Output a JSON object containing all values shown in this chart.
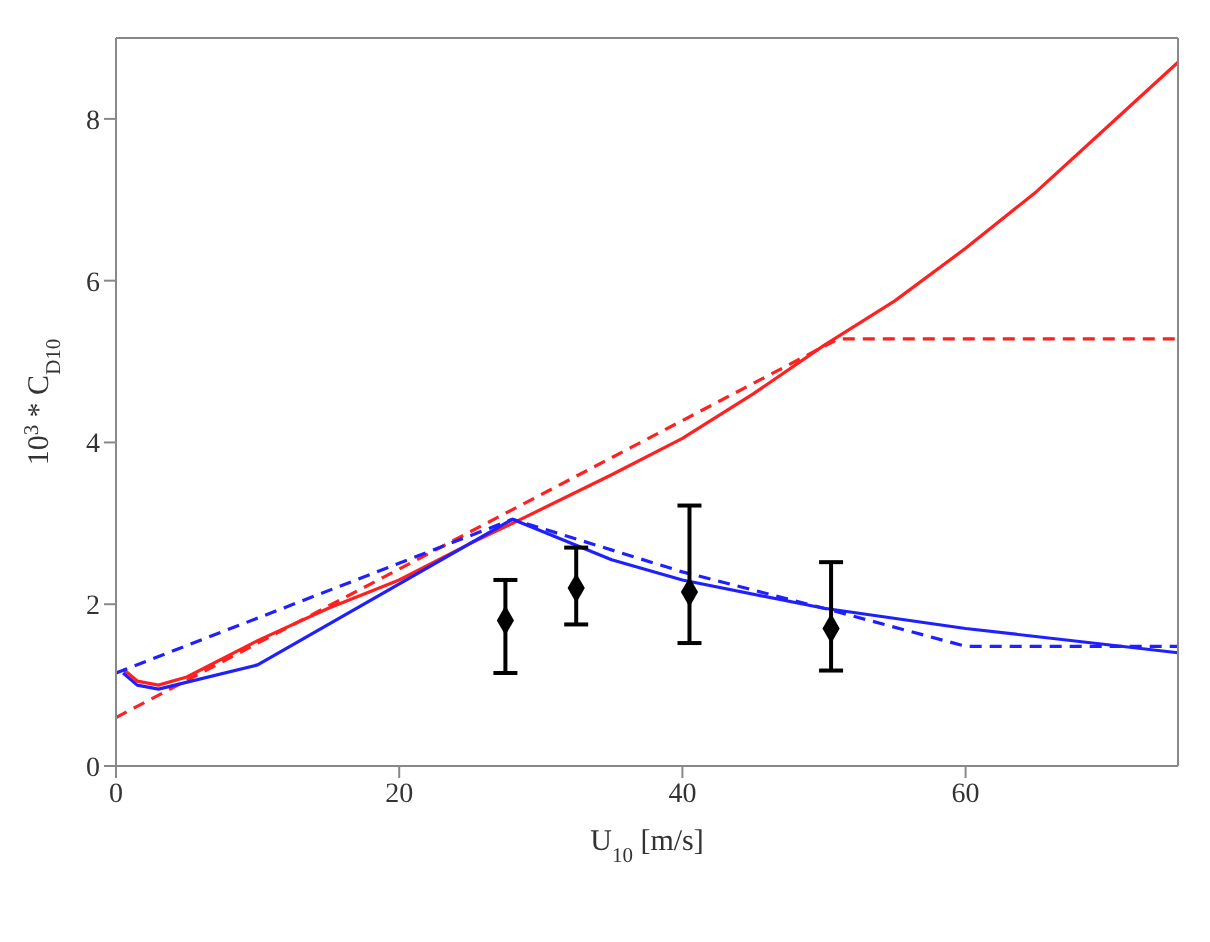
{
  "chart_data": {
    "type": "line",
    "xlabel": "U$_{10}$ [m/s]",
    "ylabel": "10$^{3}$ * C$_{D10}$",
    "xlim": [
      0,
      75
    ],
    "ylim": [
      0,
      9
    ],
    "xticks": [
      0,
      20,
      40,
      60
    ],
    "yticks": [
      0,
      2,
      4,
      6,
      8
    ],
    "grid": false,
    "legend": false,
    "series": [
      {
        "color": "#ff2020",
        "line_style": "solid",
        "x": [
          0.5,
          1.5,
          3,
          5,
          10,
          15,
          20,
          25,
          28,
          35,
          40,
          45,
          50,
          55,
          60,
          65,
          70,
          75
        ],
        "values": [
          1.2,
          1.05,
          1.0,
          1.1,
          1.55,
          1.95,
          2.3,
          2.75,
          3.0,
          3.6,
          4.05,
          4.6,
          5.2,
          5.75,
          6.4,
          7.1,
          7.9,
          8.7
        ]
      },
      {
        "color": "#ff2020",
        "line_style": "dashed",
        "x": [
          0,
          51,
          75
        ],
        "values": [
          0.6,
          5.28,
          5.28
        ]
      },
      {
        "color": "#2020ff",
        "line_style": "solid",
        "x": [
          0.5,
          1.5,
          3,
          10,
          28,
          35,
          40,
          50,
          60,
          75
        ],
        "values": [
          1.15,
          1.0,
          0.95,
          1.25,
          3.05,
          2.55,
          2.3,
          1.95,
          1.7,
          1.4
        ]
      },
      {
        "color": "#2020ff",
        "line_style": "dashed",
        "x": [
          0,
          28,
          40,
          50,
          60,
          75
        ],
        "values": [
          1.15,
          3.05,
          2.4,
          1.95,
          1.48,
          1.48
        ]
      },
      {
        "type": "scatter",
        "color": "#000000",
        "marker": "diamond",
        "x": [
          27.5,
          32.5,
          40.5,
          50.5
        ],
        "values": [
          1.8,
          2.2,
          2.15,
          1.7
        ],
        "errors": [
          [
            1.15,
            2.3
          ],
          [
            1.75,
            2.7
          ],
          [
            1.52,
            3.22
          ],
          [
            1.18,
            2.52
          ]
        ]
      }
    ]
  }
}
